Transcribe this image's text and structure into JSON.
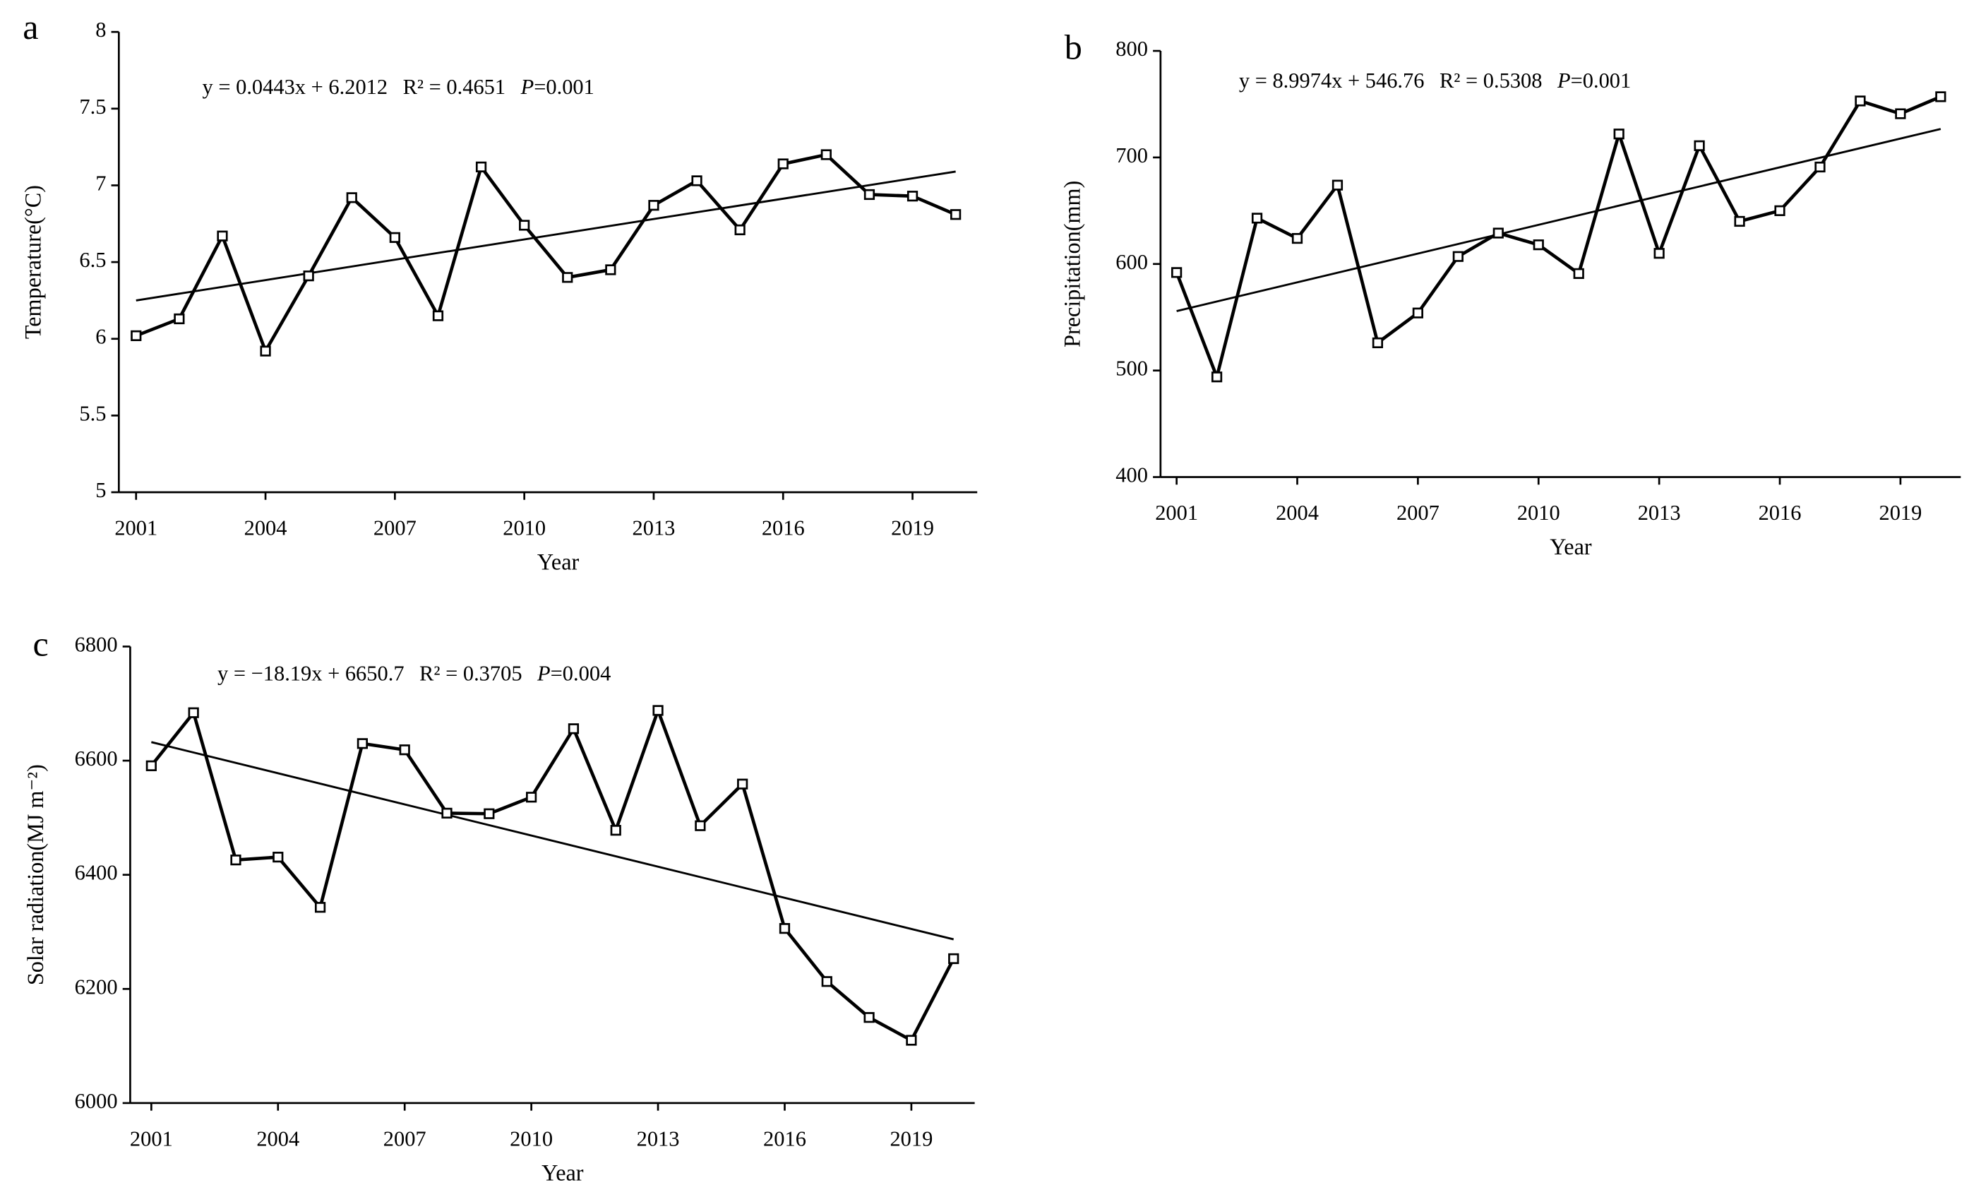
{
  "chart_data": [
    {
      "type": "line",
      "panel": "a",
      "xlabel": "Year",
      "ylabel": "Temperature(°C)",
      "x": [
        2001,
        2002,
        2003,
        2004,
        2005,
        2006,
        2007,
        2008,
        2009,
        2010,
        2011,
        2012,
        2013,
        2014,
        2015,
        2016,
        2017,
        2018,
        2019,
        2020
      ],
      "values": [
        6.02,
        6.13,
        6.67,
        5.92,
        6.41,
        6.92,
        6.66,
        6.15,
        7.12,
        6.74,
        6.4,
        6.45,
        6.87,
        7.03,
        6.71,
        7.14,
        7.2,
        6.94,
        6.93,
        6.81
      ],
      "color": "#000000",
      "trend_x": [
        2001,
        2020
      ],
      "trend_values": [
        6.25,
        7.09
      ],
      "equation": "y = 0.0443x + 6.2012",
      "r2": "R² = 0.4651",
      "p_label": "P",
      "p_value": "=0.001",
      "xlim": [
        2000.6,
        2020.5
      ],
      "xticks": [
        2001,
        2004,
        2007,
        2010,
        2013,
        2016,
        2019
      ],
      "ylim": [
        5,
        8
      ],
      "yticks": [
        5,
        5.5,
        6,
        6.5,
        7,
        7.5,
        8
      ]
    },
    {
      "type": "line",
      "panel": "b",
      "xlabel": "Year",
      "ylabel": "Precipitation(mm)",
      "x": [
        2001,
        2002,
        2003,
        2004,
        2005,
        2006,
        2007,
        2008,
        2009,
        2010,
        2011,
        2012,
        2013,
        2014,
        2015,
        2016,
        2017,
        2018,
        2019,
        2020
      ],
      "values": [
        592,
        494,
        643,
        624,
        674,
        526,
        554,
        607,
        629,
        618,
        591,
        722,
        610,
        711,
        640,
        650,
        691,
        753,
        741,
        757
      ],
      "color": "#000000",
      "trend_x": [
        2001,
        2020
      ],
      "trend_values": [
        555.8,
        726.7
      ],
      "equation": "y = 8.9974x + 546.76",
      "r2": "R² = 0.5308",
      "p_label": "P",
      "p_value": "=0.001",
      "xlim": [
        2000.6,
        2020.5
      ],
      "xticks": [
        2001,
        2004,
        2007,
        2010,
        2013,
        2016,
        2019
      ],
      "ylim": [
        400,
        800
      ],
      "yticks": [
        400,
        500,
        600,
        700,
        800
      ]
    },
    {
      "type": "line",
      "panel": "c",
      "xlabel": "Year",
      "ylabel": "Solar radiation(MJ m⁻²)",
      "x": [
        2001,
        2002,
        2003,
        2004,
        2005,
        2006,
        2007,
        2008,
        2009,
        2010,
        2011,
        2012,
        2013,
        2014,
        2015,
        2016,
        2017,
        2018,
        2019,
        2020
      ],
      "values": [
        6591,
        6684,
        6426,
        6431,
        6343,
        6630,
        6619,
        6508,
        6507,
        6536,
        6656,
        6478,
        6688,
        6486,
        6559,
        6306,
        6213,
        6150,
        6110,
        6253
      ],
      "color": "#000000",
      "trend_x": [
        2001,
        2020
      ],
      "trend_values": [
        6632.5,
        6286.9
      ],
      "equation": "y = −18.19x + 6650.7",
      "r2": "R² = 0.3705",
      "p_label": "P",
      "p_value": "=0.004",
      "xlim": [
        2000.5,
        2020.5
      ],
      "xticks": [
        2001,
        2004,
        2007,
        2010,
        2013,
        2016,
        2019
      ],
      "ylim": [
        6000,
        6800
      ],
      "yticks": [
        6000,
        6200,
        6400,
        6600,
        6800
      ]
    }
  ]
}
